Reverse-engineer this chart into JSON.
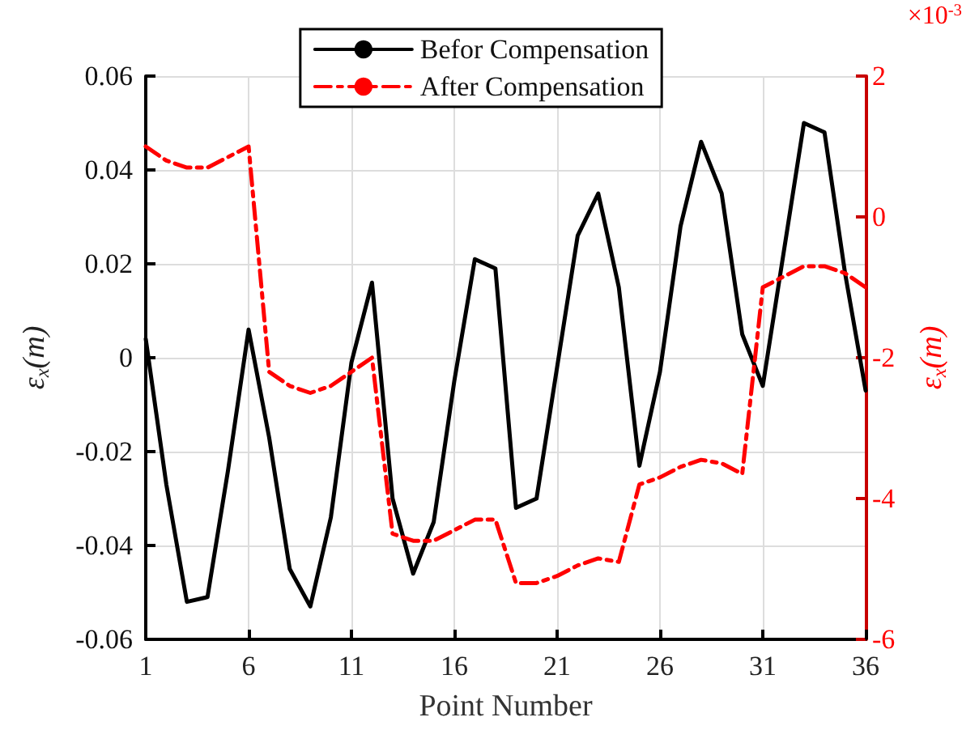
{
  "chart_data": {
    "type": "line",
    "xlabel": "Point Number",
    "ylabel": "ε$_{x}$(m)",
    "y2label": "ε$_{x}$(m)",
    "annotations": [
      "×10$^{-3}$"
    ],
    "x": [
      1,
      2,
      3,
      4,
      5,
      6,
      7,
      8,
      9,
      10,
      11,
      12,
      13,
      14,
      15,
      16,
      17,
      18,
      19,
      20,
      21,
      22,
      23,
      24,
      25,
      26,
      27,
      28,
      29,
      30,
      31,
      32,
      33,
      34,
      35,
      36
    ],
    "series": [
      {
        "name": "Befor Compensation",
        "color": "#000000",
        "line_style": "solid",
        "values": [
          0.004,
          -0.027,
          -0.052,
          -0.051,
          -0.024,
          0.006,
          -0.017,
          -0.045,
          -0.053,
          -0.034,
          -0.001,
          0.016,
          -0.03,
          -0.046,
          -0.035,
          -0.005,
          0.021,
          0.019,
          -0.032,
          -0.03,
          -0.002,
          0.026,
          0.035,
          0.015,
          -0.023,
          -0.003,
          0.028,
          0.046,
          0.035,
          0.005,
          -0.006,
          0.022,
          0.05,
          0.048,
          0.018,
          -0.007
        ]
      },
      {
        "name": "After Compensation",
        "color": "#ff0000",
        "line_style": "dashed",
        "axis": "y2",
        "values": [
          1.0,
          0.8,
          0.7,
          0.7,
          0.85,
          1.0,
          -2.2,
          -2.4,
          -2.5,
          -2.4,
          -2.2,
          -2.0,
          -4.5,
          -4.6,
          -4.6,
          -4.45,
          -4.3,
          -4.3,
          -5.2,
          -5.2,
          -5.1,
          -4.95,
          -4.85,
          -4.9,
          -3.8,
          -3.7,
          -3.55,
          -3.45,
          -3.5,
          -3.65,
          -1.0,
          -0.85,
          -0.7,
          -0.7,
          -0.8,
          -1.0
        ]
      }
    ],
    "xlim": [
      1,
      36
    ],
    "xticks": [
      1,
      6,
      11,
      16,
      21,
      26,
      31,
      36
    ],
    "ylim": [
      -0.06,
      0.06
    ],
    "yticks": [
      -0.06,
      -0.04,
      -0.02,
      0,
      0.02,
      0.04,
      0.06
    ],
    "y2lim": [
      -6,
      2
    ],
    "y2ticks": [
      -6,
      -4,
      -2,
      0,
      2
    ],
    "grid": true,
    "legend": "top",
    "marker": "none"
  }
}
